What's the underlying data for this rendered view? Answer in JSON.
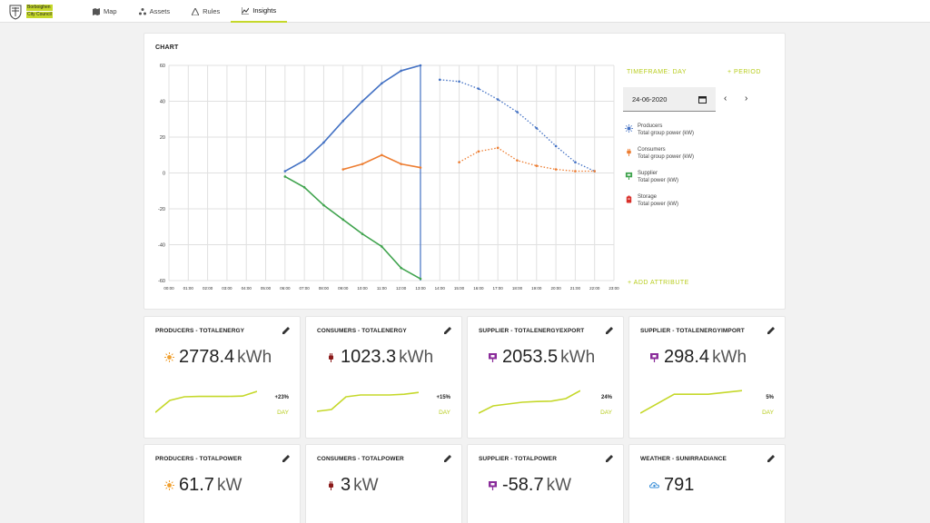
{
  "header": {
    "logo": {
      "line1": "Borboighen",
      "line2": "City Council"
    },
    "nav": [
      {
        "label": "Map",
        "icon": "map-icon"
      },
      {
        "label": "Assets",
        "icon": "assets-icon"
      },
      {
        "label": "Rules",
        "icon": "rules-icon"
      },
      {
        "label": "Insights",
        "icon": "insights-icon",
        "active": true
      }
    ]
  },
  "chart_panel": {
    "title": "CHART",
    "timeframe_label": "TIMEFRAME: DAY",
    "period_label": "+ PERIOD",
    "date_value": "24-06-2020",
    "add_attribute_label": "+ ADD ATTRIBUTE",
    "legend": [
      {
        "name": "Producers",
        "sub": "Total group power (kW)",
        "icon": "sun-icon",
        "color": "#4472c4"
      },
      {
        "name": "Consumers",
        "sub": "Total group power (kW)",
        "icon": "plug-icon",
        "color": "#ed7d31"
      },
      {
        "name": "Supplier",
        "sub": "Total power (kW)",
        "icon": "supplier-icon",
        "color": "#3fa34d"
      },
      {
        "name": "Storage",
        "sub": "Total power (kW)",
        "icon": "battery-icon",
        "color": "#d9302a"
      }
    ]
  },
  "chart_data": {
    "type": "line",
    "x_ticks": [
      "00:00",
      "01:00",
      "02:00",
      "03:00",
      "04:00",
      "05:00",
      "06:00",
      "07:00",
      "08:00",
      "09:00",
      "10:00",
      "11:00",
      "12:00",
      "13:00",
      "14:00",
      "15:00",
      "16:00",
      "17:00",
      "18:00",
      "19:00",
      "20:00",
      "21:00",
      "22:00",
      "23:00"
    ],
    "y_ticks": [
      60,
      40,
      20,
      0,
      -20,
      -40,
      -60
    ],
    "ylim": [
      -60,
      60
    ],
    "xlim": [
      0,
      23
    ],
    "current_time": 13,
    "grid": true,
    "series": [
      {
        "name": "Producers",
        "color": "#4472c4",
        "style": "solid",
        "x": [
          6,
          7,
          8,
          9,
          10,
          11,
          12,
          13
        ],
        "y": [
          1,
          7,
          17,
          29,
          40,
          50,
          57,
          60
        ]
      },
      {
        "name": "Producers",
        "color": "#4472c4",
        "style": "dotted",
        "x": [
          14,
          15,
          16,
          17,
          18,
          19,
          20,
          21,
          22
        ],
        "y": [
          52,
          51,
          47,
          41,
          34,
          25,
          15,
          6,
          1
        ]
      },
      {
        "name": "Consumers",
        "color": "#ed7d31",
        "style": "solid",
        "x": [
          9,
          10,
          11,
          12,
          13
        ],
        "y": [
          2,
          5,
          10,
          5,
          3
        ]
      },
      {
        "name": "Consumers",
        "color": "#ed7d31",
        "style": "dotted",
        "x": [
          15,
          16,
          17,
          18,
          19,
          20,
          21,
          22
        ],
        "y": [
          6,
          12,
          14,
          7,
          4,
          2,
          1,
          1
        ]
      },
      {
        "name": "Supplier",
        "color": "#3fa34d",
        "style": "solid",
        "x": [
          6,
          7,
          8,
          9,
          10,
          11,
          12,
          13
        ],
        "y": [
          -2,
          -8,
          -18,
          -26,
          -34,
          -41,
          -53,
          -59
        ]
      }
    ]
  },
  "kpis": [
    {
      "title": "PRODUCERS - TOTALENERGY",
      "icon": "sun-icon",
      "icon_color": "#f0a030",
      "value": "2778.4",
      "unit": "kWh",
      "delta": "+23%",
      "period": "DAY",
      "spark": [
        0.12,
        0.45,
        0.55,
        0.56,
        0.56,
        0.56,
        0.57,
        0.7
      ]
    },
    {
      "title": "CONSUMERS - TOTALENERGY",
      "icon": "plug-icon",
      "icon_color": "#8b1a1a",
      "value": "1023.3",
      "unit": "kWh",
      "delta": "+15%",
      "period": "DAY",
      "spark": [
        0.15,
        0.2,
        0.55,
        0.6,
        0.6,
        0.6,
        0.62,
        0.67
      ]
    },
    {
      "title": "SUPPLIER - TOTALENERGYEXPORT",
      "icon": "supplier-icon",
      "icon_color": "#8a2c9a",
      "value": "2053.5",
      "unit": "kWh",
      "delta": "24%",
      "period": "DAY",
      "spark": [
        0.1,
        0.3,
        0.35,
        0.4,
        0.42,
        0.43,
        0.5,
        0.72
      ]
    },
    {
      "title": "SUPPLIER - TOTALENERGYIMPORT",
      "icon": "supplier-icon",
      "icon_color": "#8a2c9a",
      "value": "298.4",
      "unit": "kWh",
      "delta": "5%",
      "period": "DAY",
      "spark": [
        0.1,
        0.62,
        0.62,
        0.72
      ]
    },
    {
      "title": "PRODUCERS - TOTALPOWER",
      "icon": "sun-icon",
      "icon_color": "#f0a030",
      "value": "61.7",
      "unit": "kW"
    },
    {
      "title": "CONSUMERS - TOTALPOWER",
      "icon": "plug-icon",
      "icon_color": "#8b1a1a",
      "value": "3",
      "unit": "kW"
    },
    {
      "title": "SUPPLIER - TOTALPOWER",
      "icon": "supplier-icon",
      "icon_color": "#8a2c9a",
      "value": "-58.7",
      "unit": "kW"
    },
    {
      "title": "WEATHER - SUNIRRADIANCE",
      "icon": "weather-icon",
      "icon_color": "#3a8fd8",
      "value": "791",
      "unit": ""
    }
  ]
}
